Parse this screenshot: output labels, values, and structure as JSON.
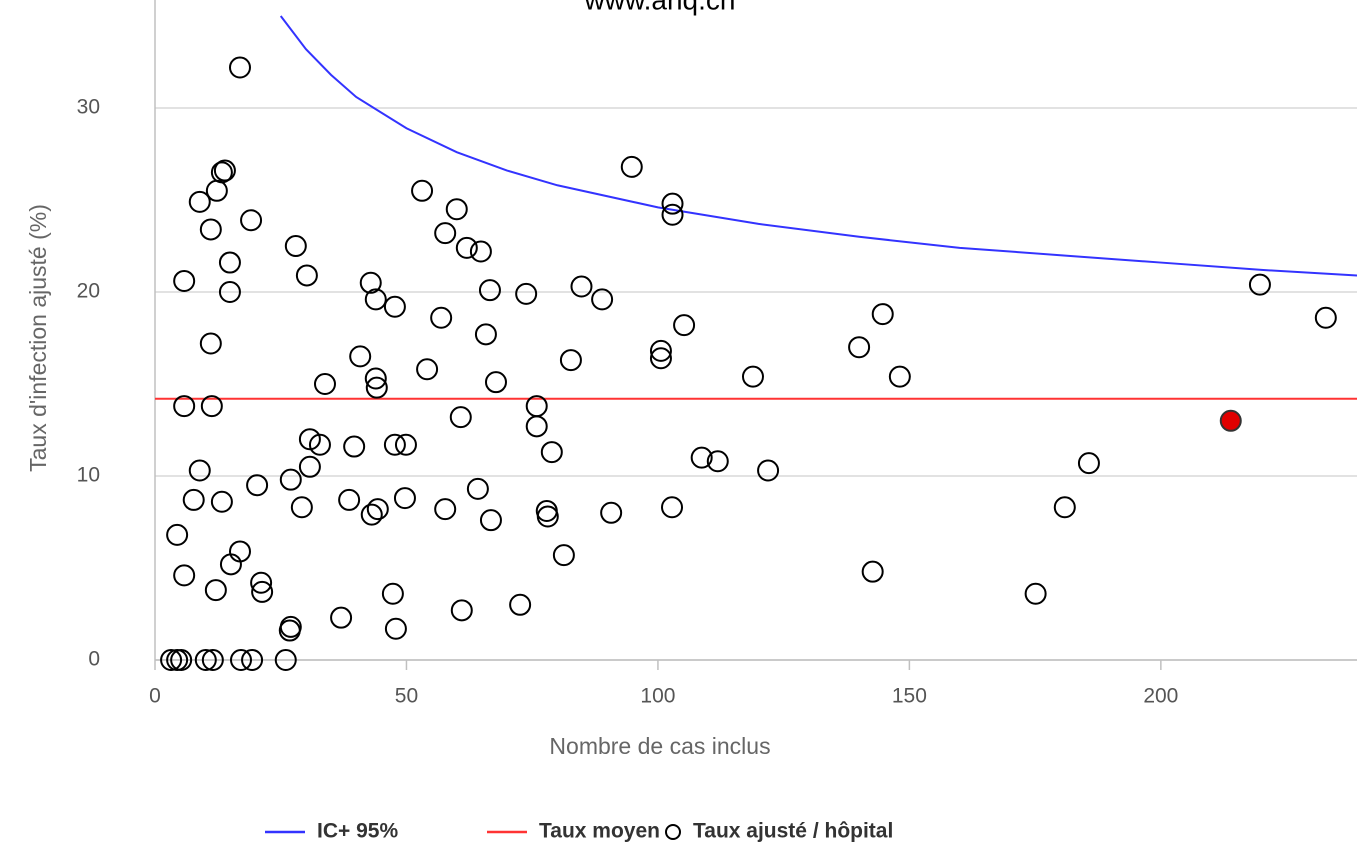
{
  "chart_data": {
    "type": "scatter",
    "title": "www.anq.ch",
    "x_label": "Nombre de cas inclus",
    "y_label": "Taux d'infection ajusté (%)",
    "xlim": [
      0,
      239
    ],
    "ylim": [
      0,
      35
    ],
    "xticks": [
      0,
      50,
      100,
      150,
      200
    ],
    "yticks": [
      0,
      10,
      20,
      30
    ],
    "grid": true,
    "legend": "bottom",
    "series": [
      {
        "name": "IC+ 95%",
        "type": "line",
        "color": "#3333ff",
        "x": [
          25,
          30,
          35,
          40,
          50,
          60,
          70,
          80,
          100,
          120,
          140,
          160,
          180,
          200,
          220,
          239
        ],
        "values": [
          35.0,
          33.2,
          31.8,
          30.6,
          28.9,
          27.6,
          26.6,
          25.8,
          24.6,
          23.7,
          23.0,
          22.4,
          22.0,
          21.6,
          21.2,
          20.9
        ]
      },
      {
        "name": "Taux moyen",
        "type": "line",
        "color": "#ff3333",
        "x": [
          0,
          239
        ],
        "values": [
          14.2,
          14.2
        ]
      },
      {
        "name": "Taux ajusté / hôpital",
        "type": "scatter",
        "color": "#000000",
        "highlight": {
          "x": 213.9,
          "y": 13.0,
          "color": "#e00000"
        },
        "x": [
          16.9,
          13.9,
          13.3,
          12.3,
          8.9,
          19.1,
          11.1,
          28.0,
          14.9,
          5.8,
          30.2,
          14.9,
          11.1,
          5.8,
          11.3,
          30.8,
          32.8,
          8.9,
          30.8,
          27.0,
          20.3,
          7.7,
          13.3,
          29.2,
          4.4,
          16.9,
          15.1,
          5.8,
          12.1,
          21.1,
          21.3,
          27.0,
          26.8,
          37.0,
          3.2,
          4.4,
          5.2,
          10.1,
          11.5,
          17.1,
          19.3,
          26.0,
          53.1,
          60.0,
          57.7,
          62.0,
          64.8,
          42.9,
          43.9,
          47.7,
          66.6,
          73.8,
          84.8,
          88.9,
          56.9,
          65.8,
          40.8,
          54.1,
          82.7,
          33.8,
          43.9,
          44.1,
          67.8,
          75.9,
          75.9,
          60.8,
          39.6,
          47.7,
          49.9,
          78.9,
          64.2,
          38.6,
          44.3,
          43.1,
          49.7,
          57.7,
          66.8,
          77.9,
          78.1,
          90.7,
          81.3,
          47.3,
          47.9,
          61.0,
          72.6,
          94.8,
          102.9,
          102.9,
          105.2,
          100.6,
          100.6,
          108.7,
          111.9,
          102.8,
          118.9,
          121.9,
          140.0,
          144.7,
          148.1,
          142.7,
          175.1,
          180.9,
          185.7,
          219.7,
          232.8
        ],
        "values": [
          32.2,
          26.6,
          26.5,
          25.5,
          24.9,
          23.9,
          23.4,
          22.5,
          21.6,
          20.6,
          20.9,
          20.0,
          17.2,
          13.8,
          13.8,
          12.0,
          11.7,
          10.3,
          10.5,
          9.8,
          9.5,
          8.7,
          8.6,
          8.3,
          6.8,
          5.9,
          5.2,
          4.6,
          3.8,
          4.2,
          3.7,
          1.8,
          1.6,
          2.3,
          0,
          0,
          0,
          0,
          0,
          0,
          0,
          0,
          25.5,
          24.5,
          23.2,
          22.4,
          22.2,
          20.5,
          19.6,
          19.2,
          20.1,
          19.9,
          20.3,
          19.6,
          18.6,
          17.7,
          16.5,
          15.8,
          16.3,
          15.0,
          15.3,
          14.8,
          15.1,
          13.8,
          12.7,
          13.2,
          11.6,
          11.7,
          11.7,
          11.3,
          9.3,
          8.7,
          8.2,
          7.9,
          8.8,
          8.2,
          7.6,
          8.1,
          7.8,
          8.0,
          5.7,
          3.6,
          1.7,
          2.7,
          3.0,
          26.8,
          24.8,
          24.2,
          18.2,
          16.8,
          16.4,
          11.0,
          10.8,
          8.3,
          15.4,
          10.3,
          17.0,
          18.8,
          15.4,
          4.8,
          3.6,
          8.3,
          10.7,
          20.4,
          18.6
        ]
      }
    ]
  }
}
